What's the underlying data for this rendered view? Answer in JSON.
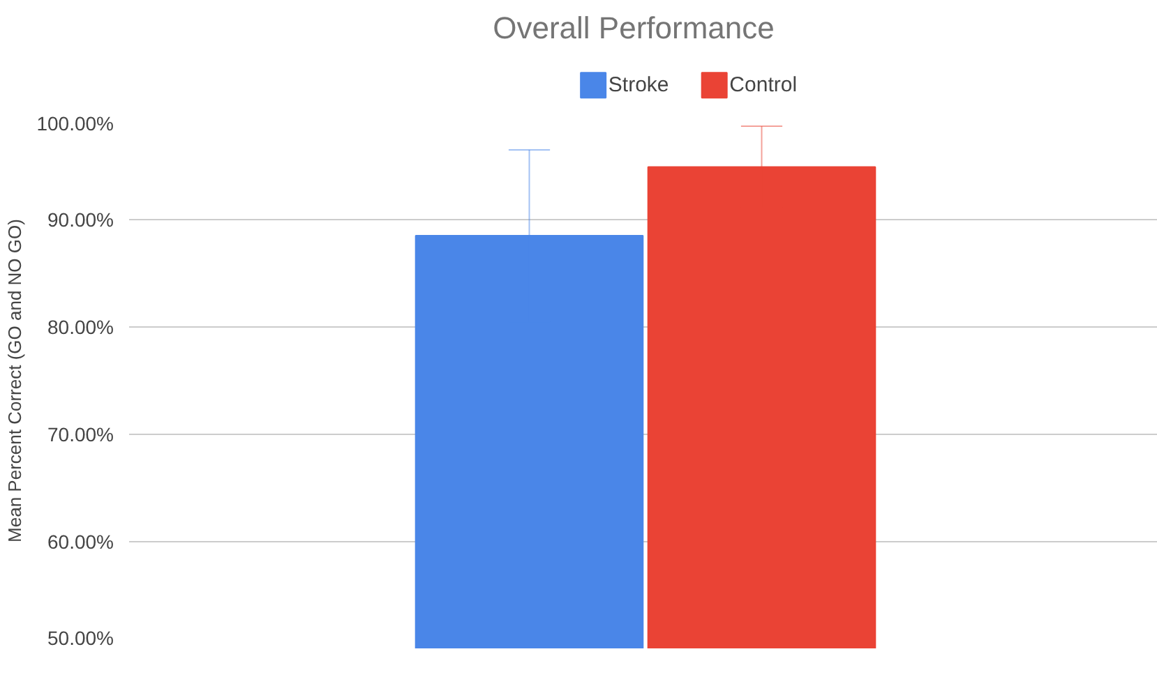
{
  "chart_data": {
    "type": "bar",
    "title": "Overall Performance",
    "ylabel": "Mean Percent Correct (GO and NO GO)",
    "categories": [
      null
    ],
    "series": [
      {
        "name": "Stroke",
        "color": "#4a86e8",
        "values": [
          88.5
        ],
        "errors": [
          8
        ]
      },
      {
        "name": "Control",
        "color": "#ea4335",
        "values": [
          94.9
        ],
        "errors": [
          3.8
        ]
      }
    ],
    "ylim": [
      50,
      100
    ],
    "yticks": [
      {
        "value": 50,
        "label": "50.00%"
      },
      {
        "value": 60,
        "label": "60.00%"
      },
      {
        "value": 70,
        "label": "70.00%"
      },
      {
        "value": 80,
        "label": "80.00%"
      },
      {
        "value": 90,
        "label": "90.00%"
      },
      {
        "value": 100,
        "label": "100.00%"
      }
    ],
    "grid": "y",
    "legend": "top",
    "tick_labels": "y"
  }
}
